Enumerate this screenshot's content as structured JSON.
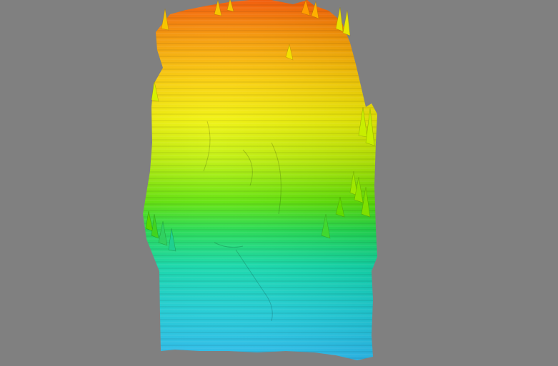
{
  "viewport": {
    "background_color": "#808080"
  },
  "terrain": {
    "description_icon": "terrain-heightmap-icon",
    "colormap": [
      "#ff5a00",
      "#ff9a00",
      "#ffd000",
      "#f2f200",
      "#b8f000",
      "#5ee600",
      "#1ee050",
      "#10e0b0",
      "#20d8e0",
      "#30c8ff"
    ]
  }
}
